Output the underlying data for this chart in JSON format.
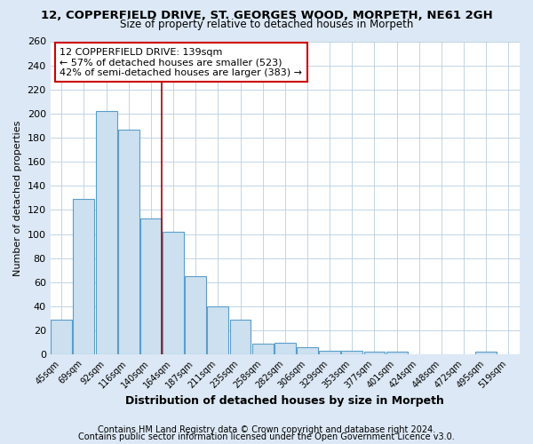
{
  "title": "12, COPPERFIELD DRIVE, ST. GEORGES WOOD, MORPETH, NE61 2GH",
  "subtitle": "Size of property relative to detached houses in Morpeth",
  "xlabel": "Distribution of detached houses by size in Morpeth",
  "ylabel": "Number of detached properties",
  "categories": [
    "45sqm",
    "69sqm",
    "92sqm",
    "116sqm",
    "140sqm",
    "164sqm",
    "187sqm",
    "211sqm",
    "235sqm",
    "258sqm",
    "282sqm",
    "306sqm",
    "329sqm",
    "353sqm",
    "377sqm",
    "401sqm",
    "424sqm",
    "448sqm",
    "472sqm",
    "495sqm",
    "519sqm"
  ],
  "values": [
    29,
    129,
    202,
    187,
    113,
    102,
    65,
    40,
    29,
    9,
    10,
    6,
    3,
    3,
    2,
    2,
    0,
    0,
    0,
    2,
    0
  ],
  "bar_color": "#cce0f0",
  "bar_edge_color": "#5a9ec9",
  "red_line_index": 4,
  "red_line_color": "#aa0000",
  "annotation_text": "12 COPPERFIELD DRIVE: 139sqm\n← 57% of detached houses are smaller (523)\n42% of semi-detached houses are larger (383) →",
  "annotation_box_color": "#ffffff",
  "annotation_box_edge": "#cc0000",
  "ylim": [
    0,
    260
  ],
  "yticks": [
    0,
    20,
    40,
    60,
    80,
    100,
    120,
    140,
    160,
    180,
    200,
    220,
    240,
    260
  ],
  "footer1": "Contains HM Land Registry data © Crown copyright and database right 2024.",
  "footer2": "Contains public sector information licensed under the Open Government Licence v3.0.",
  "bg_color": "#dce8f5",
  "plot_bg_color": "#ffffff",
  "title_fontsize": 9.5,
  "subtitle_fontsize": 8.5,
  "annotation_fontsize": 8,
  "footer_fontsize": 7,
  "ylabel_fontsize": 8,
  "xlabel_fontsize": 9
}
